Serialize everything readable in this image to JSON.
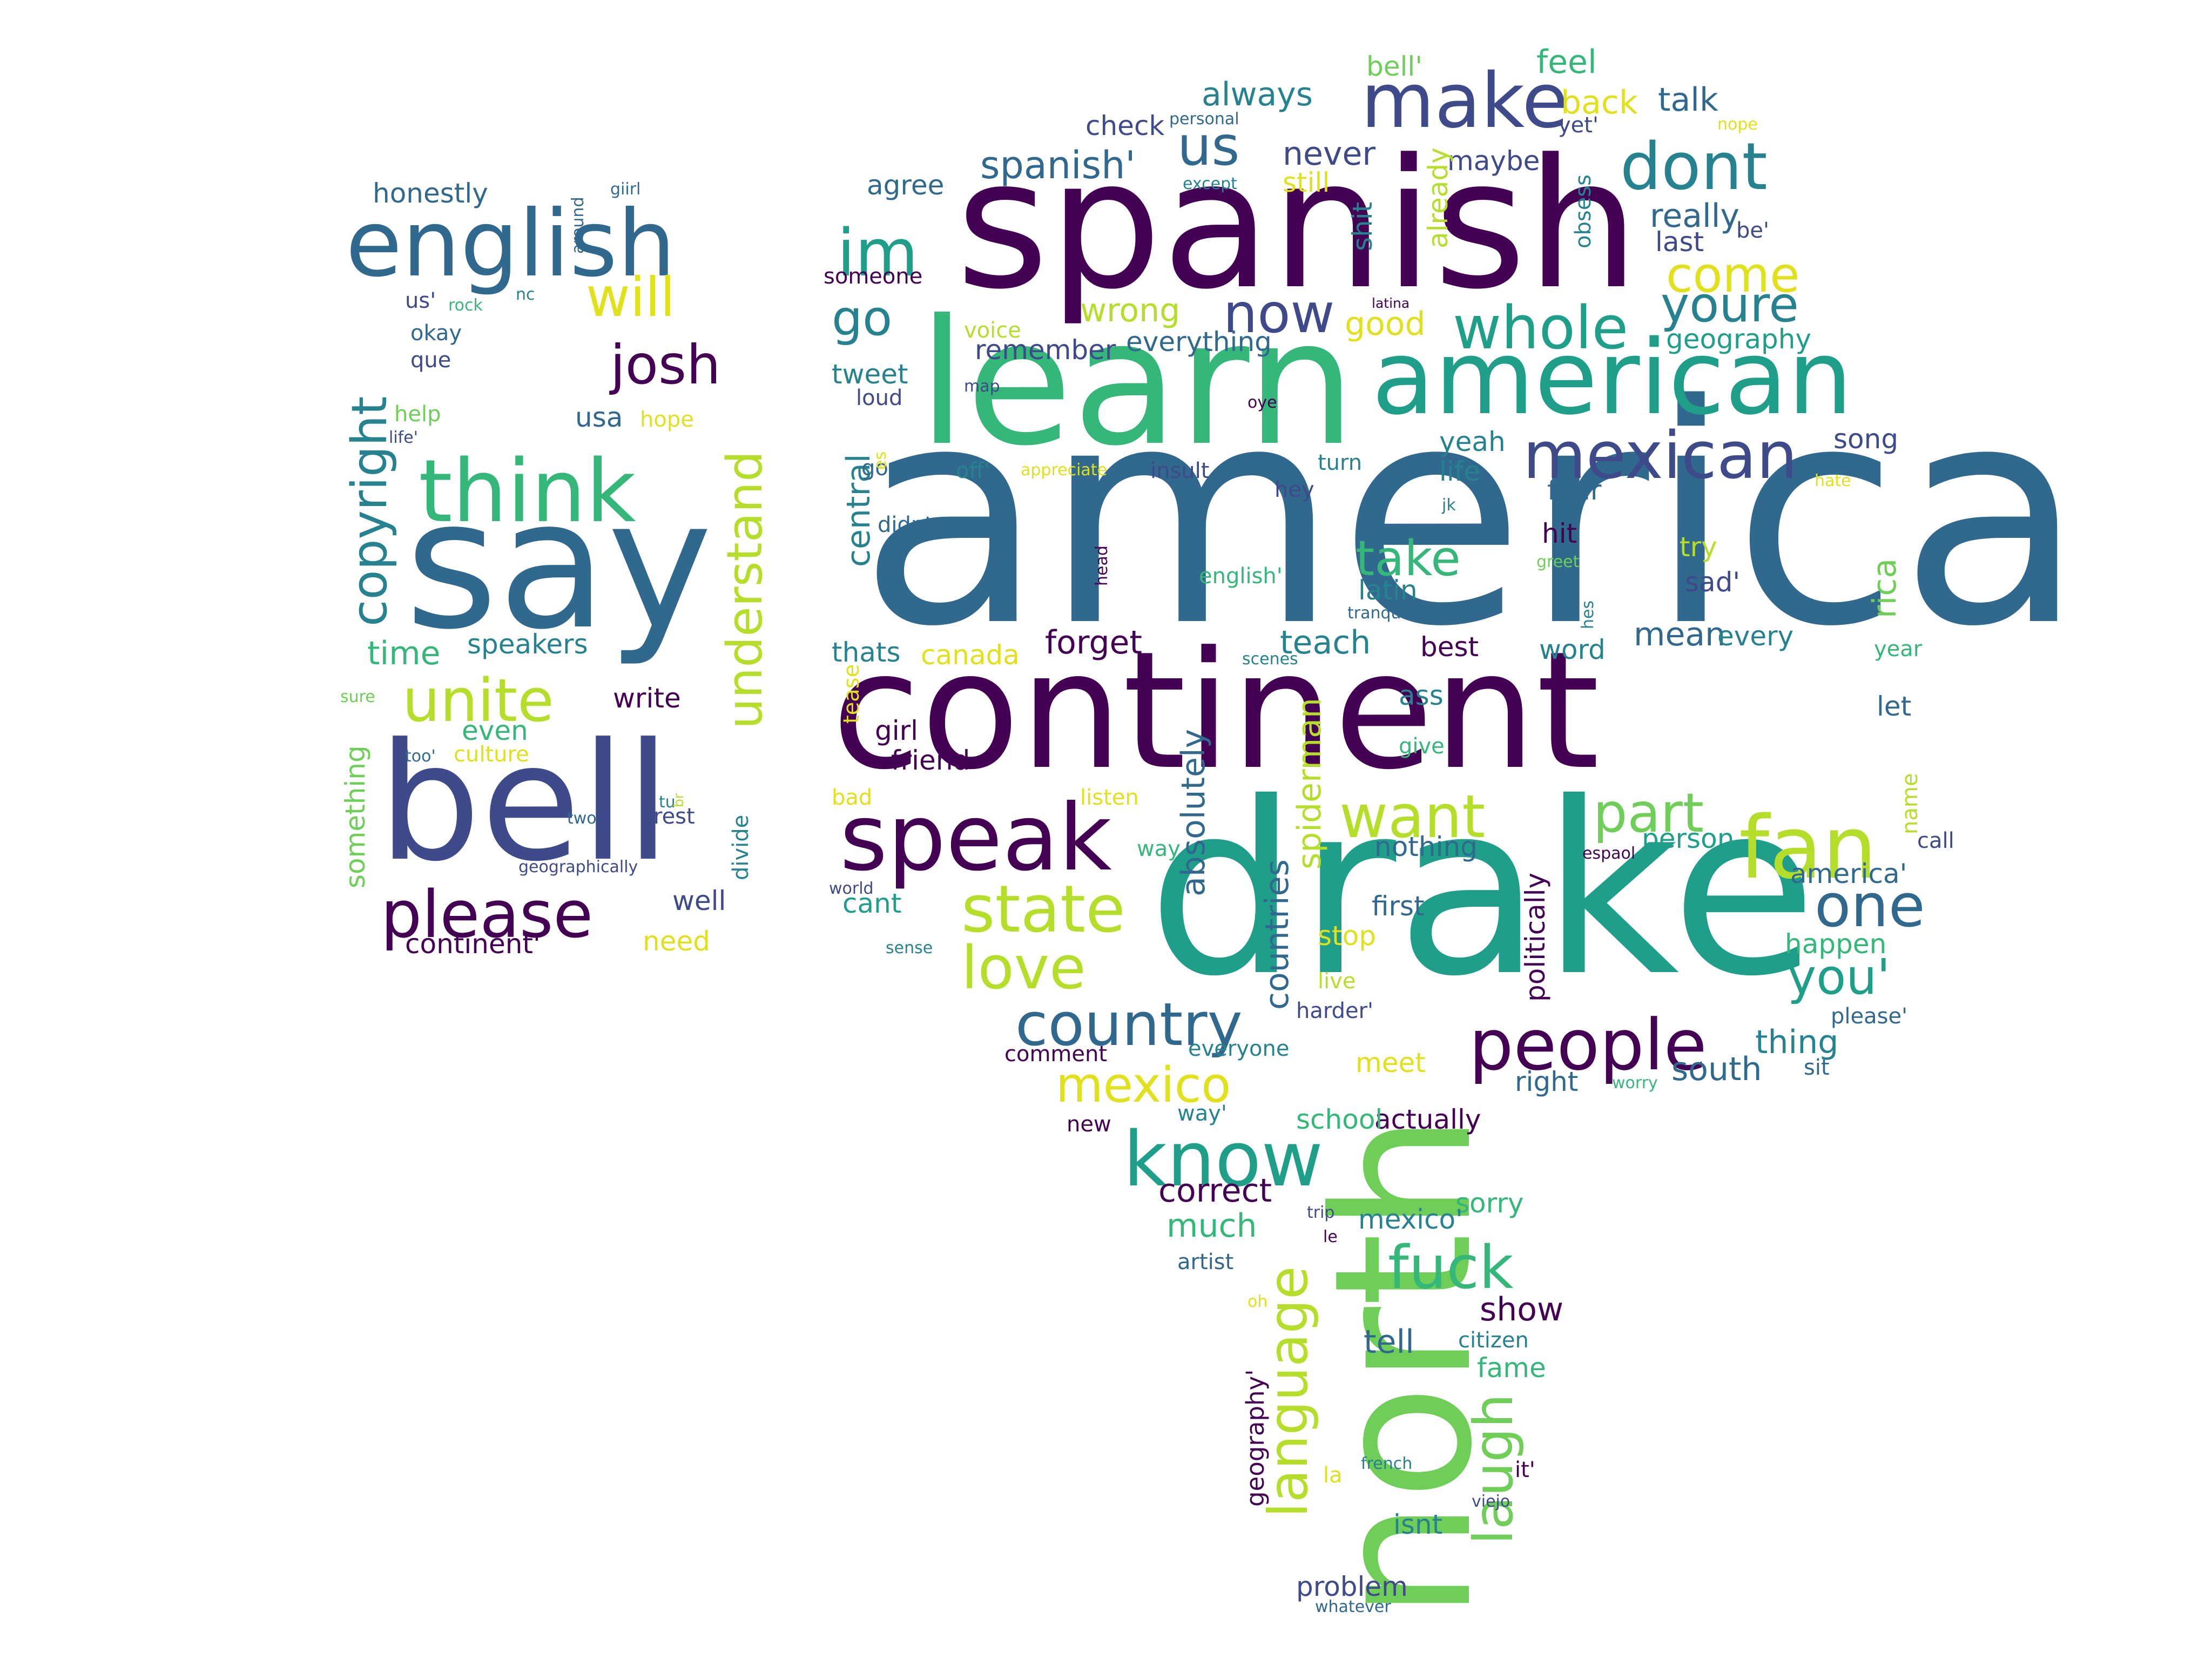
{
  "palette": {
    "dark_purple": "#440154",
    "indigo": "#3e4a89",
    "slate_blue": "#31688e",
    "teal": "#26828e",
    "sea_green": "#1f9e89",
    "green": "#35b779",
    "light_green": "#6ece58",
    "yellow_green": "#b5de2b",
    "yellow": "#e0e01c"
  },
  "words": [
    {
      "text": "america",
      "color": "#31688e"
    },
    {
      "text": "continent",
      "color": "#440154"
    },
    {
      "text": "drake",
      "color": "#1f9e89"
    },
    {
      "text": "spanish",
      "color": "#440154"
    },
    {
      "text": "learn",
      "color": "#35b779"
    },
    {
      "text": "north",
      "color": "#6ece58"
    },
    {
      "text": "say",
      "color": "#31688e"
    },
    {
      "text": "bell",
      "color": "#3e4a89"
    },
    {
      "text": "american",
      "color": "#1f9e89"
    },
    {
      "text": "english",
      "color": "#31688e"
    },
    {
      "text": "make",
      "color": "#3e4a89"
    },
    {
      "text": "speak",
      "color": "#440154"
    },
    {
      "text": "think",
      "color": "#35b779"
    },
    {
      "text": "fan",
      "color": "#b5de2b"
    },
    {
      "text": "mexican",
      "color": "#3e4a89"
    },
    {
      "text": "people",
      "color": "#440154"
    },
    {
      "text": "state",
      "color": "#b5de2b"
    },
    {
      "text": "know",
      "color": "#1f9e89"
    },
    {
      "text": "country",
      "color": "#31688e"
    },
    {
      "text": "please",
      "color": "#440154"
    },
    {
      "text": "dont",
      "color": "#26828e"
    },
    {
      "text": "copyright",
      "color": "#26828e"
    },
    {
      "text": "unite",
      "color": "#b5de2b"
    },
    {
      "text": "want",
      "color": "#b5de2b"
    },
    {
      "text": "one",
      "color": "#31688e"
    },
    {
      "text": "im",
      "color": "#1f9e89"
    },
    {
      "text": "josh",
      "color": "#440154"
    },
    {
      "text": "language",
      "color": "#b5de2b"
    },
    {
      "text": "whole",
      "color": "#1f9e89"
    },
    {
      "text": "understand",
      "color": "#b5de2b"
    },
    {
      "text": "part",
      "color": "#6ece58"
    },
    {
      "text": "love",
      "color": "#b5de2b"
    },
    {
      "text": "mexico",
      "color": "#e0e01c"
    },
    {
      "text": "fuck",
      "color": "#35b779"
    },
    {
      "text": "come",
      "color": "#e0e01c"
    },
    {
      "text": "youre",
      "color": "#26828e"
    },
    {
      "text": "now",
      "color": "#3e4a89"
    },
    {
      "text": "will",
      "color": "#e0e01c"
    },
    {
      "text": "us",
      "color": "#31688e"
    },
    {
      "text": "take",
      "color": "#35b779"
    },
    {
      "text": "laugh",
      "color": "#6ece58"
    },
    {
      "text": "you'",
      "color": "#1f9e89"
    },
    {
      "text": "go",
      "color": "#26828e"
    },
    {
      "text": "spanish'",
      "color": "#31688e"
    },
    {
      "text": "countries",
      "color": "#31688e"
    },
    {
      "text": "rica",
      "color": "#6ece58"
    },
    {
      "text": "absolutely",
      "color": "#31688e"
    },
    {
      "text": "spiderman",
      "color": "#b5de2b"
    },
    {
      "text": "central",
      "color": "#26828e"
    },
    {
      "text": "forget",
      "color": "#440154"
    },
    {
      "text": "politically",
      "color": "#440154"
    },
    {
      "text": "something",
      "color": "#6ece58"
    },
    {
      "text": "geography'",
      "color": "#440154"
    },
    {
      "text": "continent'",
      "color": "#440154"
    },
    {
      "text": "thing",
      "color": "#26828e"
    },
    {
      "text": "divide",
      "color": "#26828e"
    },
    {
      "text": "show",
      "color": "#440154"
    },
    {
      "text": "really",
      "color": "#31688e"
    },
    {
      "text": "honestly",
      "color": "#31688e"
    },
    {
      "text": "problem",
      "color": "#3e4a89"
    },
    {
      "text": "remember",
      "color": "#3e4a89"
    },
    {
      "text": "always",
      "color": "#26828e"
    },
    {
      "text": "never",
      "color": "#3e4a89"
    },
    {
      "text": "talk",
      "color": "#31688e"
    },
    {
      "text": "back",
      "color": "#e0e01c"
    },
    {
      "text": "good",
      "color": "#e0e01c"
    },
    {
      "text": "wrong",
      "color": "#b5de2b"
    },
    {
      "text": "agree",
      "color": "#31688e"
    },
    {
      "text": "teach",
      "color": "#26828e"
    },
    {
      "text": "word",
      "color": "#26828e"
    },
    {
      "text": "mean",
      "color": "#31688e"
    },
    {
      "text": "canada",
      "color": "#e0e01c"
    },
    {
      "text": "thats",
      "color": "#26828e"
    },
    {
      "text": "speakers",
      "color": "#26828e"
    },
    {
      "text": "time",
      "color": "#35b779"
    },
    {
      "text": "write",
      "color": "#440154"
    },
    {
      "text": "person",
      "color": "#1f9e89"
    },
    {
      "text": "america'",
      "color": "#31688e"
    },
    {
      "text": "south",
      "color": "#31688e"
    },
    {
      "text": "happen",
      "color": "#35b779"
    },
    {
      "text": "correct",
      "color": "#440154"
    },
    {
      "text": "much",
      "color": "#35b779"
    },
    {
      "text": "citizen",
      "color": "#26828e"
    },
    {
      "text": "fame",
      "color": "#35b779"
    },
    {
      "text": "tell",
      "color": "#31688e"
    },
    {
      "text": "feel",
      "color": "#35b779"
    },
    {
      "text": "bell'",
      "color": "#6ece58"
    },
    {
      "text": "check",
      "color": "#3e4a89"
    },
    {
      "text": "maybe",
      "color": "#3e4a89"
    },
    {
      "text": "yet'",
      "color": "#3e4a89"
    },
    {
      "text": "geography",
      "color": "#1f9e89"
    },
    {
      "text": "everything",
      "color": "#31688e"
    },
    {
      "text": "last",
      "color": "#3e4a89"
    },
    {
      "text": "voice",
      "color": "#b5de2b"
    },
    {
      "text": "tweet",
      "color": "#26828e"
    },
    {
      "text": "loud",
      "color": "#3e4a89"
    },
    {
      "text": "song",
      "color": "#3e4a89"
    },
    {
      "text": "yeah",
      "color": "#26828e"
    },
    {
      "text": "life",
      "color": "#26828e"
    },
    {
      "text": "four",
      "color": "#31688e"
    },
    {
      "text": "hit",
      "color": "#440154"
    },
    {
      "text": "try",
      "color": "#b5de2b"
    },
    {
      "text": "sad'",
      "color": "#3e4a89"
    },
    {
      "text": "latin",
      "color": "#26828e"
    },
    {
      "text": "best",
      "color": "#440154"
    },
    {
      "text": "every",
      "color": "#26828e"
    },
    {
      "text": "year",
      "color": "#35b779"
    },
    {
      "text": "let",
      "color": "#31688e"
    },
    {
      "text": "ass",
      "color": "#26828e"
    },
    {
      "text": "give",
      "color": "#35b779"
    },
    {
      "text": "girl",
      "color": "#440154"
    },
    {
      "text": "friend",
      "color": "#440154"
    },
    {
      "text": "bad",
      "color": "#e0e01c"
    },
    {
      "text": "listen",
      "color": "#e0e01c"
    },
    {
      "text": "way",
      "color": "#35b779"
    },
    {
      "text": "cant",
      "color": "#1f9e89"
    },
    {
      "text": "nothing",
      "color": "#31688e"
    },
    {
      "text": "first",
      "color": "#31688e"
    },
    {
      "text": "stop",
      "color": "#e0e01c"
    },
    {
      "text": "live",
      "color": "#b5de2b"
    },
    {
      "text": "harder'",
      "color": "#3e4a89"
    },
    {
      "text": "meet",
      "color": "#e0e01c"
    },
    {
      "text": "actually",
      "color": "#440154"
    },
    {
      "text": "school",
      "color": "#35b779"
    },
    {
      "text": "sorry",
      "color": "#35b779"
    },
    {
      "text": "mexico'",
      "color": "#26828e"
    },
    {
      "text": "artist",
      "color": "#31688e"
    },
    {
      "text": "comment",
      "color": "#440154"
    },
    {
      "text": "everyone",
      "color": "#26828e"
    },
    {
      "text": "right",
      "color": "#31688e"
    },
    {
      "text": "call",
      "color": "#3e4a89"
    },
    {
      "text": "sit",
      "color": "#31688e"
    },
    {
      "text": "please'",
      "color": "#31688e"
    },
    {
      "text": "worry",
      "color": "#35b779"
    },
    {
      "text": "name",
      "color": "#b5de2b"
    },
    {
      "text": "google",
      "color": "#31688e"
    },
    {
      "text": "off'",
      "color": "#26828e"
    },
    {
      "text": "didnt",
      "color": "#31688e"
    },
    {
      "text": "insult",
      "color": "#3e4a89"
    },
    {
      "text": "appreciate",
      "color": "#e0e01c"
    },
    {
      "text": "hey",
      "color": "#3e4a89"
    },
    {
      "text": "turn",
      "color": "#26828e"
    },
    {
      "text": "english'",
      "color": "#35b779"
    },
    {
      "text": "someone",
      "color": "#440154"
    },
    {
      "text": "usa",
      "color": "#31688e"
    },
    {
      "text": "hope",
      "color": "#e0e01c"
    },
    {
      "text": "help",
      "color": "#6ece58"
    },
    {
      "text": "okay",
      "color": "#31688e"
    },
    {
      "text": "que",
      "color": "#3e4a89"
    },
    {
      "text": "us'",
      "color": "#3e4a89"
    },
    {
      "text": "even",
      "color": "#35b779"
    },
    {
      "text": "sure",
      "color": "#6ece58"
    },
    {
      "text": "culture",
      "color": "#e0e01c"
    },
    {
      "text": "rest",
      "color": "#3e4a89"
    },
    {
      "text": "two",
      "color": "#31688e"
    },
    {
      "text": "well",
      "color": "#3e4a89"
    },
    {
      "text": "need",
      "color": "#e0e01c"
    },
    {
      "text": "new",
      "color": "#440154"
    },
    {
      "text": "way'",
      "color": "#26828e"
    },
    {
      "text": "it'",
      "color": "#440154"
    },
    {
      "text": "isnt",
      "color": "#26828e"
    },
    {
      "text": "whatever",
      "color": "#31688e"
    },
    {
      "text": "la",
      "color": "#e0e01c"
    },
    {
      "text": "french",
      "color": "#26828e"
    },
    {
      "text": "viejo",
      "color": "#3e4a89"
    },
    {
      "text": "trip",
      "color": "#3e4a89"
    },
    {
      "text": "le",
      "color": "#440154"
    },
    {
      "text": "oh",
      "color": "#e0e01c"
    },
    {
      "text": "map",
      "color": "#3e4a89"
    },
    {
      "text": "oye",
      "color": "#440154"
    },
    {
      "text": "tease",
      "color": "#e0e01c"
    },
    {
      "text": "jk",
      "color": "#26828e"
    },
    {
      "text": "greet",
      "color": "#6ece58"
    },
    {
      "text": "hes",
      "color": "#26828e"
    },
    {
      "text": "head",
      "color": "#440154"
    },
    {
      "text": "tranquilo",
      "color": "#31688e"
    },
    {
      "text": "scenes",
      "color": "#26828e"
    },
    {
      "text": "espaol",
      "color": "#440154"
    },
    {
      "text": "world",
      "color": "#3e4a89"
    },
    {
      "text": "sense",
      "color": "#26828e"
    },
    {
      "text": "es",
      "color": "#e0e01c"
    },
    {
      "text": "latina",
      "color": "#440154"
    },
    {
      "text": "shit",
      "color": "#26828e"
    },
    {
      "text": "already",
      "color": "#b5de2b"
    },
    {
      "text": "obsess",
      "color": "#26828e"
    },
    {
      "text": "be'",
      "color": "#3e4a89"
    },
    {
      "text": "hate",
      "color": "#e0e01c"
    },
    {
      "text": "nope",
      "color": "#e0e01c"
    },
    {
      "text": "personal",
      "color": "#31688e"
    },
    {
      "text": "except",
      "color": "#26828e"
    },
    {
      "text": "still",
      "color": "#e0e01c"
    },
    {
      "text": "giirl",
      "color": "#31688e"
    },
    {
      "text": "around",
      "color": "#31688e"
    },
    {
      "text": "nc",
      "color": "#26828e"
    },
    {
      "text": "rock",
      "color": "#35b779"
    },
    {
      "text": "life'",
      "color": "#3e4a89"
    },
    {
      "text": "too'",
      "color": "#31688e"
    },
    {
      "text": "tu",
      "color": "#26828e"
    },
    {
      "text": "br",
      "color": "#b5de2b"
    },
    {
      "text": "geographically",
      "color": "#3e4a89"
    }
  ]
}
